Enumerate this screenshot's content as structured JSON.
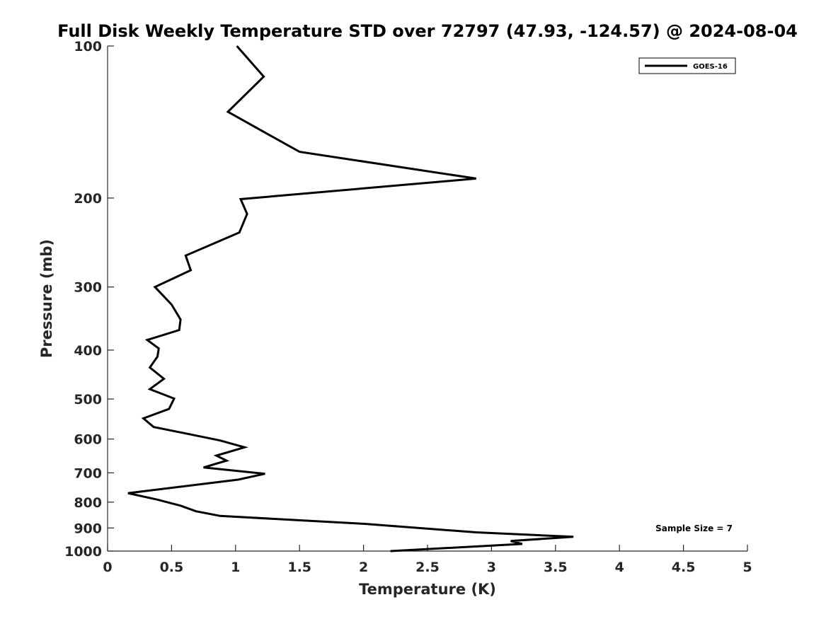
{
  "chart_data": {
    "type": "line",
    "title": "Full Disk Weekly Temperature STD over 72797 (47.93, -124.57) @ 2024-08-04",
    "xlabel": "Temperature (K)",
    "ylabel": "Pressure (mb)",
    "xlim": [
      0,
      5
    ],
    "ylim": [
      100,
      1000
    ],
    "y_scale": "log",
    "y_reversed": true,
    "grid": false,
    "legend_position": "top-right",
    "x_ticks": [
      "0",
      "0.5",
      "1",
      "1.5",
      "2",
      "2.5",
      "3",
      "3.5",
      "4",
      "4.5",
      "5"
    ],
    "y_ticks": [
      "100",
      "200",
      "300",
      "400",
      "500",
      "600",
      "700",
      "800",
      "900",
      "1000"
    ],
    "annotation": "Sample Size = 7",
    "series": [
      {
        "name": "GOES-16",
        "color": "#000000",
        "x": [
          1.01,
          1.22,
          0.94,
          1.5,
          2.88,
          1.04,
          1.09,
          1.03,
          0.61,
          0.65,
          0.37,
          0.5,
          0.57,
          0.56,
          0.31,
          0.4,
          0.39,
          0.33,
          0.44,
          0.33,
          0.52,
          0.48,
          0.28,
          0.36,
          0.61,
          0.88,
          1.07,
          0.85,
          0.93,
          0.75,
          1.23,
          1.02,
          0.16,
          0.39,
          0.57,
          0.69,
          0.88,
          2.0,
          2.88,
          3.64,
          3.15,
          3.24,
          2.21
        ],
        "y": [
          100,
          115,
          135,
          162,
          183,
          201,
          215,
          234,
          260,
          278,
          300,
          325,
          348,
          365,
          382,
          397,
          412,
          433,
          456,
          478,
          499,
          523,
          546,
          568,
          585,
          604,
          623,
          647,
          662,
          683,
          703,
          722,
          768,
          791,
          813,
          834,
          852,
          883,
          918,
          937,
          955,
          968,
          1000
        ]
      }
    ]
  }
}
